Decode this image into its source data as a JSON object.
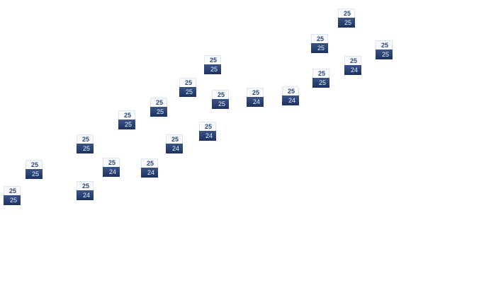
{
  "tiles": [
    {
      "top": "25",
      "bottom": "25"
    },
    {
      "top": "25",
      "bottom": "25"
    },
    {
      "top": "25",
      "bottom": "25"
    },
    {
      "top": "25",
      "bottom": "24"
    },
    {
      "top": "25",
      "bottom": "24"
    },
    {
      "top": "25",
      "bottom": "25"
    },
    {
      "top": "25",
      "bottom": "24"
    },
    {
      "top": "25",
      "bottom": "25"
    },
    {
      "top": "25",
      "bottom": "24"
    },
    {
      "top": "25",
      "bottom": "25"
    },
    {
      "top": "25",
      "bottom": "24"
    },
    {
      "top": "25",
      "bottom": "25"
    },
    {
      "top": "25",
      "bottom": "25"
    },
    {
      "top": "25",
      "bottom": "24"
    },
    {
      "top": "25",
      "bottom": "24"
    },
    {
      "top": "25",
      "bottom": "25"
    },
    {
      "top": "25",
      "bottom": "25"
    },
    {
      "top": "25",
      "bottom": "25"
    },
    {
      "top": "25",
      "bottom": "24"
    },
    {
      "top": "25",
      "bottom": "25"
    }
  ],
  "colors": {
    "tile_dark": "#1c3160",
    "tile_light": "#f4f7fc",
    "text_top": "#2d4677"
  }
}
